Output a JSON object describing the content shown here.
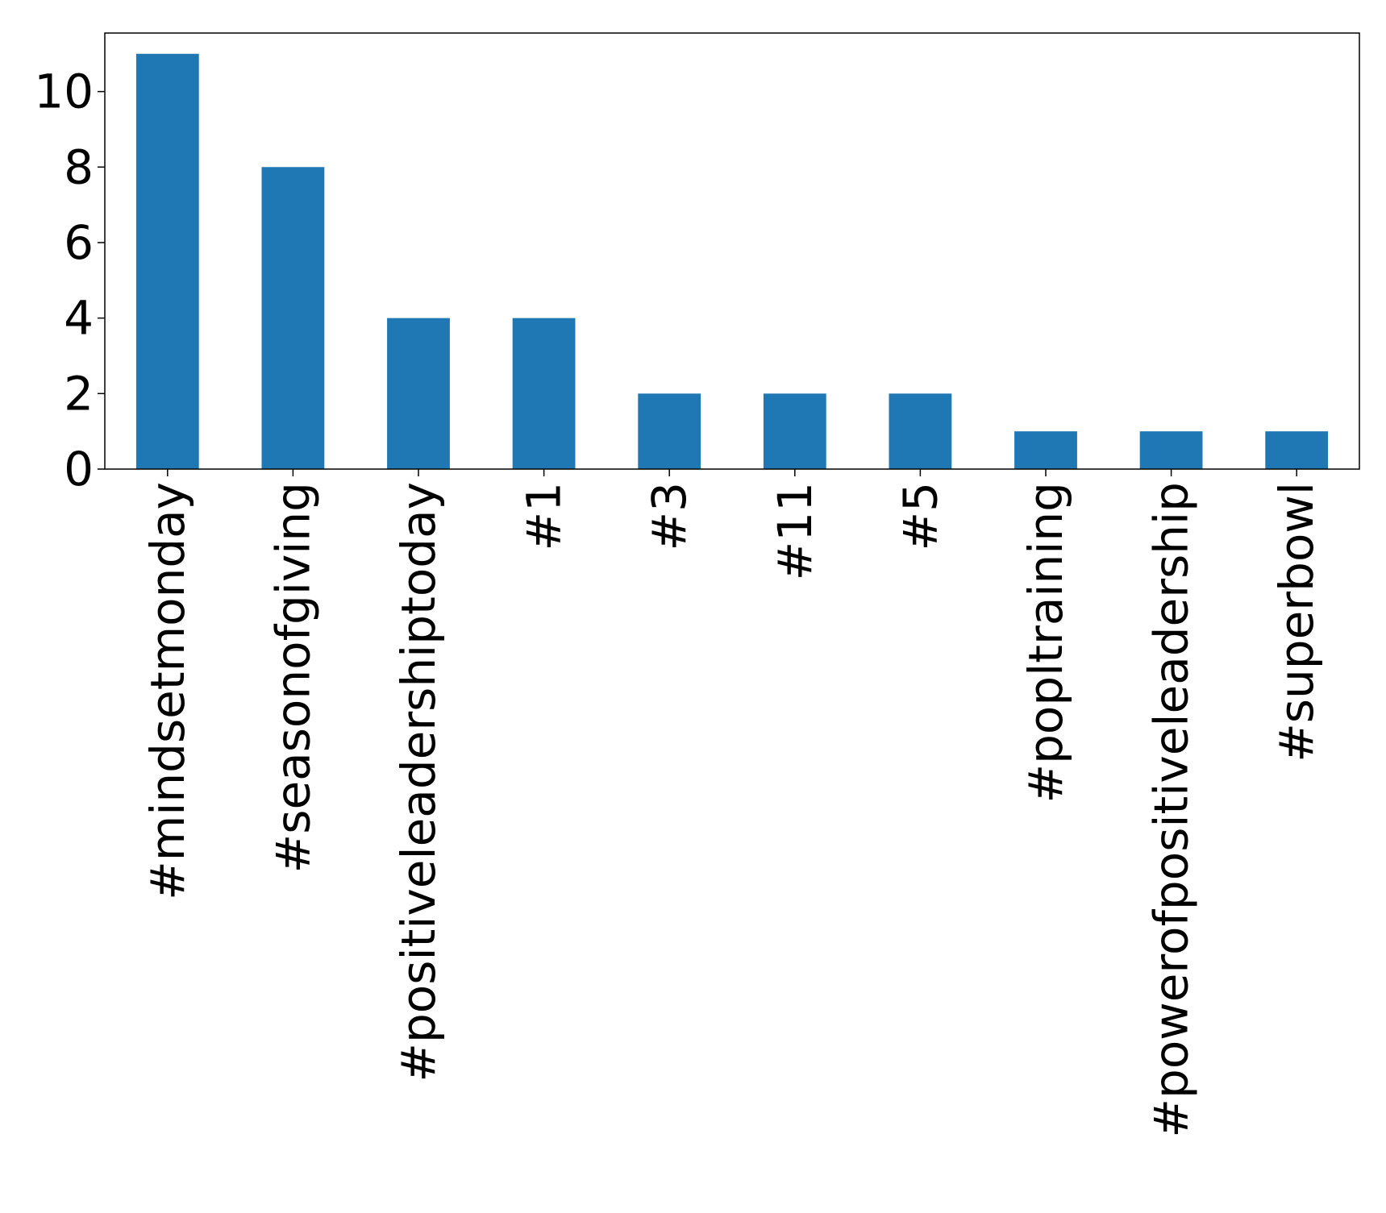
{
  "chart_data": {
    "type": "bar",
    "title": "",
    "xlabel": "",
    "ylabel": "",
    "categories": [
      "#mindsetmonday",
      "#seasonofgiving",
      "#positiveleadershiptoday",
      "#1",
      "#3",
      "#11",
      "#5",
      "#popltraining",
      "#powerofpositiveleadership",
      "#superbowl"
    ],
    "values": [
      11,
      8,
      4,
      4,
      2,
      2,
      2,
      1,
      1,
      1
    ],
    "ylim": [
      0,
      11.55
    ],
    "yticks": [
      0,
      2,
      4,
      6,
      8,
      10
    ],
    "ytick_labels": [
      "0",
      "2",
      "4",
      "6",
      "8",
      "10"
    ],
    "grid": false,
    "legend": "none",
    "bar_color": "#1f77b4"
  }
}
